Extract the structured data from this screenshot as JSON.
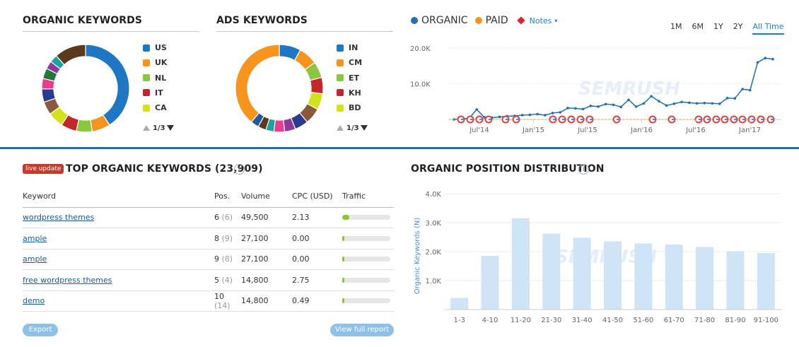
{
  "organic_keywords": {
    "title": "ORGANIC KEYWORDS",
    "legend": [
      {
        "label": "US",
        "color": "#1f77c4",
        "value": 42
      },
      {
        "label": "UK",
        "color": "#f7941d",
        "value": 7
      },
      {
        "label": "NL",
        "color": "#8cc63f",
        "value": 6
      },
      {
        "label": "IT",
        "color": "#c1272d",
        "value": 6
      },
      {
        "label": "CA",
        "color": "#d4e21b",
        "value": 6
      },
      {
        "label": "",
        "color": "#8a5a3a",
        "value": 5
      },
      {
        "label": "",
        "color": "#2a3a8f",
        "value": 5
      },
      {
        "label": "",
        "color": "#e83e8c",
        "value": 4
      },
      {
        "label": "",
        "color": "#1e7a3a",
        "value": 4
      },
      {
        "label": "",
        "color": "#8e3a9c",
        "value": 3
      },
      {
        "label": "",
        "color": "#1aa3a3",
        "value": 3
      },
      {
        "label": "",
        "color": "#5a3a1a",
        "value": 12
      }
    ],
    "pager": "1/3"
  },
  "ads_keywords": {
    "title": "ADS KEYWORDS",
    "legend": [
      {
        "label": "IN",
        "color": "#1f77c4",
        "value": 8
      },
      {
        "label": "CM",
        "color": "#f7941d",
        "value": 7
      },
      {
        "label": "ET",
        "color": "#8cc63f",
        "value": 6
      },
      {
        "label": "KH",
        "color": "#c1272d",
        "value": 6
      },
      {
        "label": "BD",
        "color": "#d4e21b",
        "value": 6
      },
      {
        "label": "",
        "color": "#8a5a3a",
        "value": 6
      },
      {
        "label": "",
        "color": "#2a3a8f",
        "value": 5
      },
      {
        "label": "",
        "color": "#8e3a9c",
        "value": 4
      },
      {
        "label": "",
        "color": "#e83e8c",
        "value": 4
      },
      {
        "label": "",
        "color": "#1aa3a3",
        "value": 3
      },
      {
        "label": "",
        "color": "#5a3a1a",
        "value": 3
      },
      {
        "label": "",
        "color": "#1f5aa0",
        "value": 3
      },
      {
        "label": "",
        "color": "#f7941d",
        "value": 39
      }
    ],
    "pager": "1/3"
  },
  "trend": {
    "legend_organic": "ORGANIC",
    "legend_paid": "PAID",
    "notes": "Notes",
    "tabs": [
      "1M",
      "6M",
      "1Y",
      "2Y",
      "All Time"
    ],
    "active_tab": "All Time",
    "y_ticks": [
      "20.0K",
      "10.0K"
    ],
    "x_ticks": [
      "Jul'14",
      "Jan'15",
      "Jul'15",
      "Jan'16",
      "Jul'16",
      "Jan'17"
    ],
    "organic_color": "#1f6fb2",
    "paid_color": "#f7941d",
    "organic_values": [
      0,
      200,
      300,
      2800,
      600,
      500,
      700,
      900,
      1000,
      1200,
      1300,
      1500,
      1200,
      1800,
      2000,
      3200,
      3100,
      2900,
      3800,
      3600,
      4300,
      4100,
      3500,
      5500,
      3600,
      4500,
      6500,
      5100,
      3900,
      4400,
      4900,
      4700,
      4500,
      4600,
      4500,
      4400,
      6000,
      5900,
      8500,
      8200,
      16000,
      17200,
      16900
    ],
    "paid_values_count": 20
  },
  "top_keywords": {
    "badge": "live update",
    "title": "TOP ORGANIC KEYWORDS (23,909)",
    "columns": [
      "Keyword",
      "Pos.",
      "Volume",
      "CPC (USD)",
      "Traffic"
    ],
    "rows": [
      {
        "keyword": "wordpress themes",
        "pos": "6",
        "prev": "(6)",
        "volume": "49,500",
        "cpc": "2.13",
        "traffic": 0.15
      },
      {
        "keyword": "ample",
        "pos": "8",
        "prev": "(9)",
        "volume": "27,100",
        "cpc": "0.00",
        "traffic": 0.04
      },
      {
        "keyword": "ample",
        "pos": "9",
        "prev": "(8)",
        "volume": "27,100",
        "cpc": "0.00",
        "traffic": 0.03
      },
      {
        "keyword": "free wordpress themes",
        "pos": "5",
        "prev": "(4)",
        "volume": "14,800",
        "cpc": "2.75",
        "traffic": 0.03
      },
      {
        "keyword": "demo",
        "pos": "10",
        "prev": "(14)",
        "volume": "14,800",
        "cpc": "0.49",
        "traffic": 0.02
      }
    ],
    "export_label": "Export",
    "view_full_label": "View full report"
  },
  "position_distribution": {
    "title": "ORGANIC POSITION DISTRIBUTION",
    "chart_data": {
      "type": "bar",
      "categories": [
        "1-3",
        "4-10",
        "11-20",
        "21-30",
        "31-40",
        "41-50",
        "51-60",
        "61-70",
        "71-80",
        "81-90",
        "91-100"
      ],
      "values": [
        400,
        1850,
        3150,
        2620,
        2480,
        2350,
        2280,
        2240,
        2160,
        2010,
        1950
      ],
      "ylabel": "Organic Keywords (N)",
      "y_ticks": [
        "4.0K",
        "3.0K",
        "2.0K",
        "1.0K"
      ],
      "ylim": [
        0,
        4000
      ],
      "bar_color": "#cfe4f7"
    }
  }
}
